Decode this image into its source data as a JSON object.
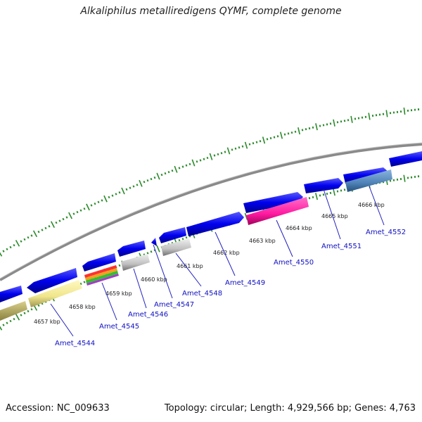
{
  "title": "Alkaliphilus metalliredigens QYMF, complete genome",
  "accession": "Accession: NC_009633",
  "summary": "Topology: circular; Length: 4,929,566 bp; Genes: 4,763",
  "colors": {
    "backbone": "#808080",
    "gene_forward": "#0000ee",
    "tick": "#2b8a2b",
    "label": "#1010c0"
  },
  "kbp_labels": [
    "4657 kbp",
    "4658 kbp",
    "4659 kbp",
    "4660 kbp",
    "4661 kbp",
    "4662 kbp",
    "4663 kbp",
    "4664 kbp",
    "4665 kbp",
    "4666 kbp"
  ],
  "genes": [
    {
      "name": "Amet_4544",
      "color": "#f3eca0"
    },
    {
      "name": "Amet_4545",
      "color": "multicolor"
    },
    {
      "name": "Amet_4546",
      "color": "#c8c8c8"
    },
    {
      "name": "Amet_4547",
      "color": "#0000ee"
    },
    {
      "name": "Amet_4548",
      "color": "#c8c8c8"
    },
    {
      "name": "Amet_4549",
      "color": "#0000ee"
    },
    {
      "name": "Amet_4550",
      "color": "#ff1aa0"
    },
    {
      "name": "Amet_4551",
      "color": "#0000ee"
    },
    {
      "name": "Amet_4552",
      "color": "#4f82b8"
    }
  ]
}
